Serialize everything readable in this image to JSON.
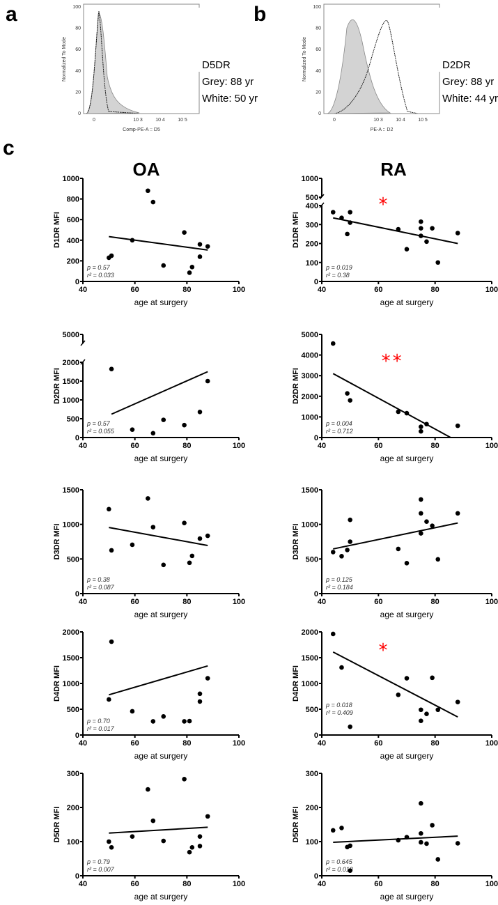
{
  "panels": {
    "a": "a",
    "b": "b",
    "c": "c"
  },
  "columns": {
    "oa": "OA",
    "ra": "RA"
  },
  "chart_data": [
    {
      "type": "histogram",
      "panel": "a",
      "ylabel": "Normalized To Mode",
      "xlabel": "Comp-PE-A :: D5",
      "yticks": [
        "0",
        "20",
        "40",
        "60",
        "80",
        "100"
      ],
      "xticks": [
        "0",
        "10^3",
        "10^4",
        "10^5"
      ],
      "legend": [
        "D5DR",
        "Grey: 88 yr",
        "White: 50 yr"
      ],
      "series": [
        {
          "name": "Grey: 88 yr",
          "fill": "#d3d3d3",
          "peak_x": "~0"
        },
        {
          "name": "White: 50 yr",
          "style": "dotted",
          "peak_x": "~0"
        }
      ]
    },
    {
      "type": "histogram",
      "panel": "b",
      "ylabel": "Normalized To Mode",
      "xlabel": "PE-A :: D2",
      "yticks": [
        "0",
        "20",
        "40",
        "60",
        "80",
        "100"
      ],
      "xticks": [
        "0",
        "10^3",
        "10^4",
        "10^5"
      ],
      "legend": [
        "D2DR",
        "Grey: 88 yr",
        "White: 44 yr"
      ],
      "series": [
        {
          "name": "Grey: 88 yr",
          "fill": "#d3d3d3",
          "peak_x": "~10^2.5"
        },
        {
          "name": "White: 44 yr",
          "style": "dotted",
          "peak_x": "~10^3.4"
        }
      ]
    },
    {
      "type": "scatter",
      "group": "OA",
      "ylabel": "D1DR  MFI",
      "xlabel": "age at surgery",
      "xlim": [
        40,
        100
      ],
      "xticks": [
        "40",
        "60",
        "80",
        "100"
      ],
      "yticks": [
        "0",
        "200",
        "400",
        "600",
        "800",
        "1000"
      ],
      "p": "p = 0.57",
      "r2": "r² = 0.033",
      "sig": "",
      "x": [
        50,
        51,
        59,
        65,
        67,
        71,
        79,
        81,
        82,
        85,
        85,
        88
      ],
      "y": [
        230,
        250,
        400,
        880,
        770,
        155,
        475,
        85,
        140,
        360,
        240,
        340
      ],
      "fit": [
        [
          50,
          435
        ],
        [
          88,
          305
        ]
      ]
    },
    {
      "type": "scatter",
      "group": "RA",
      "ylabel": "D1DR  MFI",
      "xlabel": "age at surgery",
      "xlim": [
        40,
        100
      ],
      "xticks": [
        "40",
        "60",
        "80",
        "100"
      ],
      "yticks": [
        "0",
        "100",
        "200",
        "300",
        "400",
        "500",
        "1000"
      ],
      "p": "p = 0.019",
      "r2": "r² = 0.38",
      "sig": "*",
      "x": [
        44,
        47,
        49,
        50,
        50,
        67,
        70,
        75,
        75,
        75,
        77,
        79,
        81,
        88
      ],
      "y": [
        365,
        335,
        250,
        365,
        310,
        275,
        170,
        315,
        280,
        240,
        210,
        280,
        100,
        255
      ],
      "fit": [
        [
          44,
          335
        ],
        [
          88,
          200
        ]
      ]
    },
    {
      "type": "scatter",
      "group": "OA",
      "ylabel": "D2DR MFI",
      "xlabel": "age at surgery",
      "xlim": [
        40,
        100
      ],
      "xticks": [
        "40",
        "60",
        "80",
        "100"
      ],
      "yticks": [
        "0",
        "500",
        "1000",
        "1500",
        "2000",
        "5000"
      ],
      "p": "p = 0.57",
      "r2": "r² = 0.055",
      "sig": "",
      "x": [
        51,
        59,
        67,
        71,
        79,
        85,
        88
      ],
      "y": [
        1820,
        210,
        115,
        470,
        330,
        680,
        1500
      ],
      "fit": [
        [
          51,
          620
        ],
        [
          88,
          1750
        ]
      ]
    },
    {
      "type": "scatter",
      "group": "RA",
      "ylabel": "D2DR MFI",
      "xlabel": "age at surgery",
      "xlim": [
        40,
        100
      ],
      "xticks": [
        "40",
        "60",
        "80",
        "100"
      ],
      "yticks": [
        "0",
        "1000",
        "2000",
        "3000",
        "4000",
        "5000"
      ],
      "p": "p = 0.004",
      "r2": "r² = 0.712",
      "sig": "**",
      "x": [
        44,
        49,
        50,
        67,
        70,
        75,
        75,
        77,
        88
      ],
      "y": [
        4560,
        2140,
        1800,
        1250,
        1180,
        520,
        300,
        650,
        570
      ],
      "fit": [
        [
          44,
          3100
        ],
        [
          85.5,
          0
        ]
      ]
    },
    {
      "type": "scatter",
      "group": "OA",
      "ylabel": "D3DR MFI",
      "xlabel": "age at surgery",
      "xlim": [
        40,
        100
      ],
      "xticks": [
        "40",
        "60",
        "80",
        "100"
      ],
      "yticks": [
        "0",
        "500",
        "1000",
        "1500"
      ],
      "p": "p = 0.38",
      "r2": "r² = 0.087",
      "sig": "",
      "x": [
        50,
        51,
        59,
        65,
        67,
        71,
        79,
        81,
        82,
        85,
        88
      ],
      "y": [
        1220,
        625,
        705,
        1375,
        960,
        415,
        1020,
        445,
        545,
        795,
        835
      ],
      "fit": [
        [
          50,
          955
        ],
        [
          88,
          695
        ]
      ]
    },
    {
      "type": "scatter",
      "group": "RA",
      "ylabel": "D3DR MFI",
      "xlabel": "age at surgery",
      "xlim": [
        40,
        100
      ],
      "xticks": [
        "40",
        "60",
        "80",
        "100"
      ],
      "yticks": [
        "0",
        "500",
        "1000",
        "1500"
      ],
      "p": "p = 0.125",
      "r2": "r² = 0.184",
      "sig": "",
      "x": [
        44,
        47,
        49,
        50,
        50,
        67,
        70,
        75,
        75,
        75,
        77,
        79,
        81,
        88
      ],
      "y": [
        600,
        540,
        630,
        750,
        1065,
        645,
        440,
        1360,
        1160,
        870,
        1040,
        980,
        495,
        1160
      ],
      "fit": [
        [
          44,
          645
        ],
        [
          88,
          1020
        ]
      ]
    },
    {
      "type": "scatter",
      "group": "OA",
      "ylabel": "D4DR MFI",
      "xlabel": "age at surgery",
      "xlim": [
        40,
        100
      ],
      "xticks": [
        "40",
        "60",
        "80",
        "100"
      ],
      "yticks": [
        "0",
        "500",
        "1000",
        "1500",
        "2000"
      ],
      "p": "p = 0.70",
      "r2": "r² = 0.017",
      "sig": "",
      "x": [
        50,
        51,
        59,
        67,
        71,
        79,
        81,
        85,
        85,
        88
      ],
      "y": [
        690,
        1810,
        460,
        265,
        360,
        265,
        270,
        800,
        650,
        1100
      ],
      "fit": [
        [
          50,
          780
        ],
        [
          88,
          1340
        ]
      ]
    },
    {
      "type": "scatter",
      "group": "RA",
      "ylabel": "D4DR MFI",
      "xlabel": "age at surgery",
      "xlim": [
        40,
        100
      ],
      "xticks": [
        "40",
        "60",
        "80",
        "100"
      ],
      "yticks": [
        "0",
        "500",
        "1000",
        "1500",
        "2000"
      ],
      "p": "p = 0.018",
      "r2": "r² = 0.409",
      "sig": "*",
      "x": [
        44,
        47,
        50,
        67,
        70,
        75,
        75,
        77,
        79,
        81,
        88
      ],
      "y": [
        1960,
        1310,
        160,
        780,
        1100,
        490,
        275,
        410,
        1110,
        490,
        640
      ],
      "fit": [
        [
          44,
          1610
        ],
        [
          88,
          350
        ]
      ]
    },
    {
      "type": "scatter",
      "group": "OA",
      "ylabel": "D5DR MFI",
      "xlabel": "age at surgery",
      "xlim": [
        40,
        100
      ],
      "xticks": [
        "40",
        "60",
        "80",
        "100"
      ],
      "yticks": [
        "0",
        "100",
        "200",
        "300"
      ],
      "p": "p = 0.79",
      "r2": "r² = 0.007",
      "sig": "",
      "x": [
        50,
        51,
        59,
        65,
        67,
        71,
        79,
        81,
        82,
        85,
        85,
        88
      ],
      "y": [
        100,
        83,
        115,
        253,
        161,
        102,
        283,
        69,
        83,
        115,
        87,
        174
      ],
      "fit": [
        [
          50,
          125
        ],
        [
          88,
          142
        ]
      ]
    },
    {
      "type": "scatter",
      "group": "RA",
      "ylabel": "D5DR MFI",
      "xlabel": "age at surgery",
      "xlim": [
        40,
        100
      ],
      "xticks": [
        "40",
        "60",
        "80",
        "100"
      ],
      "yticks": [
        "0",
        "100",
        "200",
        "300"
      ],
      "p": "p = 0.645",
      "r2": "r² = 0.018",
      "sig": "",
      "x": [
        44,
        47,
        49,
        50,
        50,
        67,
        70,
        75,
        75,
        75,
        77,
        79,
        81,
        88
      ],
      "y": [
        133,
        140,
        84,
        88,
        15,
        104,
        113,
        212,
        124,
        98,
        94,
        148,
        48,
        95
      ],
      "fit": [
        [
          44,
          98
        ],
        [
          88,
          116
        ]
      ]
    }
  ],
  "colors": {
    "sig": "#ff0000",
    "grey_fill": "#d3d3d3"
  }
}
